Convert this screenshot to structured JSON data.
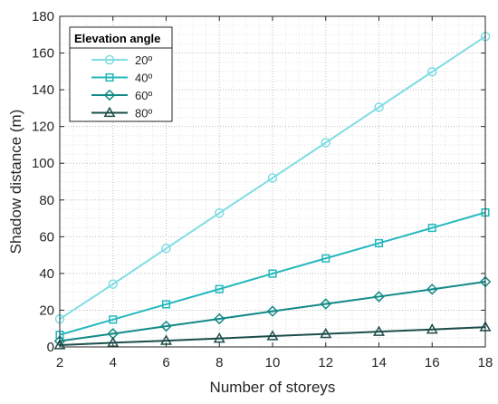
{
  "chart_data": {
    "type": "line",
    "xlabel": "Number of storeys",
    "ylabel": "Shadow distance (m)",
    "x": [
      2,
      4,
      6,
      8,
      10,
      12,
      14,
      16,
      18
    ],
    "xlim": [
      2,
      18
    ],
    "ylim": [
      0,
      180
    ],
    "x_ticks": [
      "2",
      "4",
      "6",
      "8",
      "10",
      "12",
      "14",
      "16",
      "18"
    ],
    "y_ticks": [
      "0",
      "20",
      "40",
      "60",
      "80",
      "100",
      "120",
      "140",
      "160",
      "180"
    ],
    "grid": "major and minor dotted",
    "legend_title": "Elevation angle",
    "legend_position": "top-left",
    "series": [
      {
        "name": "20º",
        "color": "#7fdde3",
        "marker": "circle",
        "values": [
          15.2,
          34.2,
          53.6,
          72.9,
          92.0,
          111.2,
          130.5,
          149.8,
          169.0
        ]
      },
      {
        "name": "40º",
        "color": "#22b8bd",
        "marker": "square",
        "values": [
          6.6,
          14.9,
          23.2,
          31.5,
          39.9,
          48.2,
          56.5,
          64.8,
          73.2
        ]
      },
      {
        "name": "60º",
        "color": "#128a86",
        "marker": "diamond",
        "values": [
          3.2,
          7.2,
          11.3,
          15.3,
          19.4,
          23.4,
          27.4,
          31.4,
          35.5
        ]
      },
      {
        "name": "80º",
        "color": "#1c4d4a",
        "marker": "triangle",
        "values": [
          1.0,
          2.3,
          3.4,
          4.6,
          5.9,
          7.1,
          8.3,
          9.5,
          10.8
        ]
      }
    ]
  }
}
